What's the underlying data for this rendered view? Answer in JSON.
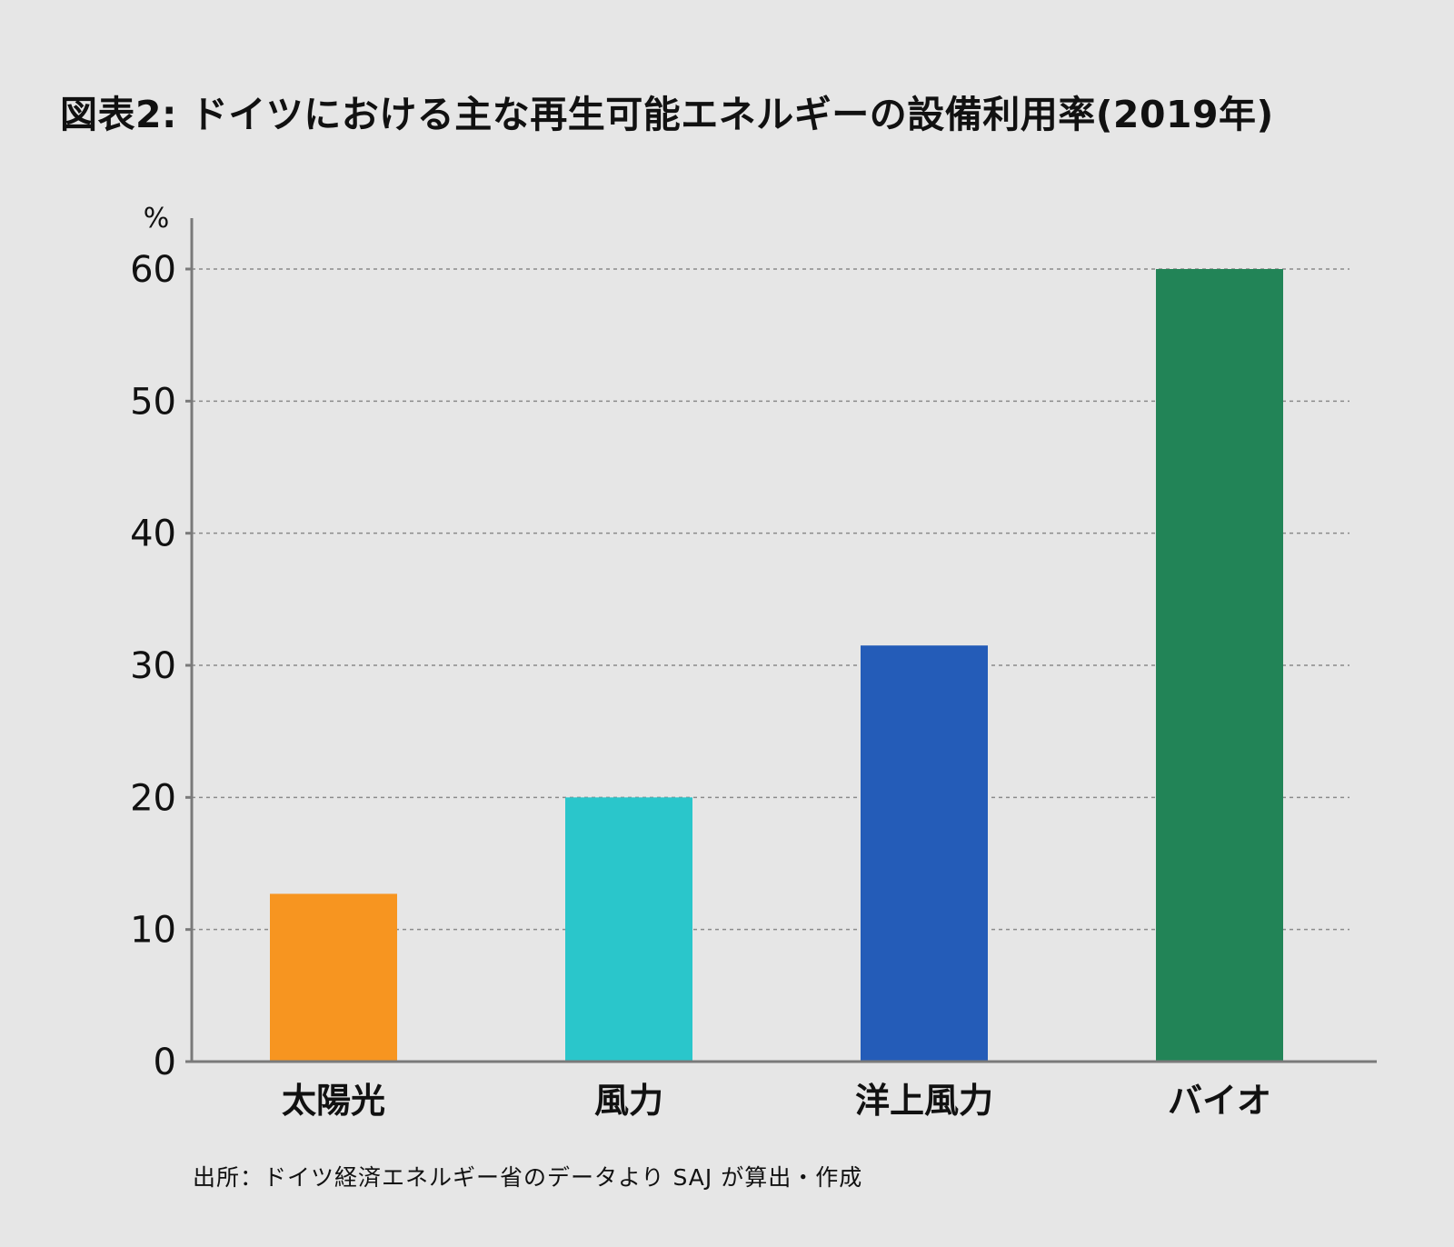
{
  "chart_data": {
    "type": "bar",
    "title": "図表2: ドイツにおける主な再生可能エネルギーの設備利用率(2019年)",
    "ylabel": "%",
    "xlabel": "",
    "ylim": [
      0,
      60
    ],
    "yticks": [
      0,
      10,
      20,
      30,
      40,
      50,
      60
    ],
    "grid": true,
    "categories": [
      "太陽光",
      "風力",
      "洋上風力",
      "バイオ"
    ],
    "values": [
      12.7,
      20.0,
      31.5,
      60.0
    ],
    "colors": [
      "#f79520",
      "#2ac6cb",
      "#245cb8",
      "#228457"
    ],
    "source": "出所：ドイツ経済エネルギー省のデータより SAJ が算出・作成"
  }
}
